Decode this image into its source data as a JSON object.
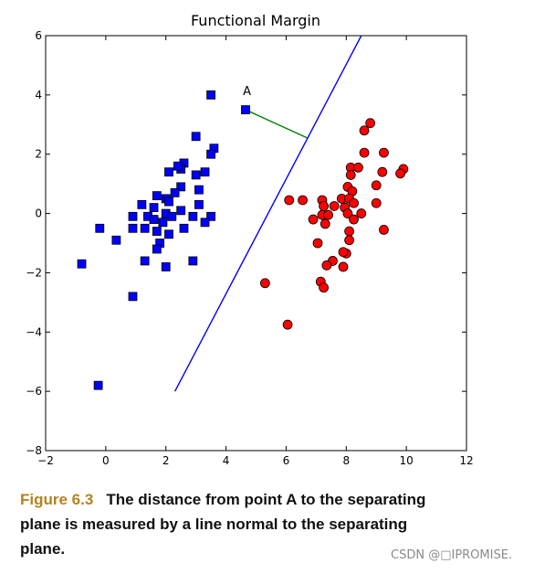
{
  "chart_data": {
    "type": "scatter",
    "title": "Functional Margin",
    "xlabel": "",
    "ylabel": "",
    "xlim": [
      -2,
      12
    ],
    "ylim": [
      -8,
      6
    ],
    "xticks": [
      "−2",
      "0",
      "2",
      "4",
      "6",
      "8",
      "10",
      "12"
    ],
    "yticks": [
      "−8",
      "−6",
      "−4",
      "−2",
      "0",
      "2",
      "4",
      "6"
    ],
    "grid": false,
    "legend": "none",
    "series": [
      {
        "marker": "square",
        "color": "#0000ff",
        "points": [
          [
            3.5,
            4.0
          ],
          [
            4.65,
            3.5
          ],
          [
            3.0,
            2.6
          ],
          [
            3.6,
            2.2
          ],
          [
            3.5,
            2.0
          ],
          [
            2.6,
            1.7
          ],
          [
            2.1,
            1.4
          ],
          [
            2.5,
            1.5
          ],
          [
            2.4,
            1.6
          ],
          [
            3.3,
            1.4
          ],
          [
            3.0,
            1.3
          ],
          [
            3.1,
            0.8
          ],
          [
            2.5,
            0.9
          ],
          [
            2.3,
            0.7
          ],
          [
            1.7,
            0.6
          ],
          [
            2.0,
            0.5
          ],
          [
            2.1,
            0.4
          ],
          [
            1.2,
            0.3
          ],
          [
            1.6,
            0.2
          ],
          [
            3.1,
            0.3
          ],
          [
            2.5,
            0.1
          ],
          [
            2.0,
            0.0
          ],
          [
            0.9,
            -0.1
          ],
          [
            1.4,
            -0.1
          ],
          [
            1.6,
            -0.2
          ],
          [
            1.9,
            -0.3
          ],
          [
            2.2,
            -0.1
          ],
          [
            2.9,
            -0.1
          ],
          [
            3.5,
            -0.1
          ],
          [
            3.3,
            -0.3
          ],
          [
            -0.2,
            -0.5
          ],
          [
            0.9,
            -0.5
          ],
          [
            1.3,
            -0.5
          ],
          [
            1.7,
            -0.6
          ],
          [
            2.1,
            -0.7
          ],
          [
            2.6,
            -0.5
          ],
          [
            0.35,
            -0.9
          ],
          [
            1.8,
            -1.0
          ],
          [
            1.7,
            -1.2
          ],
          [
            -0.8,
            -1.7
          ],
          [
            1.3,
            -1.6
          ],
          [
            2.0,
            -1.8
          ],
          [
            2.9,
            -1.6
          ],
          [
            0.9,
            -2.8
          ],
          [
            -0.25,
            -5.8
          ]
        ]
      },
      {
        "marker": "circle",
        "color": "#ff0000",
        "points": [
          [
            8.8,
            3.05
          ],
          [
            8.6,
            2.8
          ],
          [
            8.6,
            2.05
          ],
          [
            9.25,
            2.05
          ],
          [
            9.9,
            1.5
          ],
          [
            9.8,
            1.35
          ],
          [
            8.15,
            1.55
          ],
          [
            8.4,
            1.55
          ],
          [
            9.2,
            1.4
          ],
          [
            8.15,
            1.3
          ],
          [
            9.0,
            0.95
          ],
          [
            8.05,
            0.9
          ],
          [
            8.2,
            0.75
          ],
          [
            7.85,
            0.5
          ],
          [
            8.1,
            0.5
          ],
          [
            7.2,
            0.45
          ],
          [
            6.1,
            0.45
          ],
          [
            6.55,
            0.45
          ],
          [
            8.25,
            0.35
          ],
          [
            9.0,
            0.35
          ],
          [
            7.95,
            0.2
          ],
          [
            7.25,
            0.25
          ],
          [
            7.6,
            0.25
          ],
          [
            8.05,
            0.0
          ],
          [
            7.2,
            -0.05
          ],
          [
            7.4,
            -0.05
          ],
          [
            8.5,
            0.0
          ],
          [
            6.9,
            -0.2
          ],
          [
            7.3,
            -0.35
          ],
          [
            8.25,
            -0.2
          ],
          [
            8.1,
            -0.6
          ],
          [
            9.25,
            -0.55
          ],
          [
            8.1,
            -0.9
          ],
          [
            7.05,
            -1.0
          ],
          [
            8.0,
            -1.35
          ],
          [
            7.9,
            -1.3
          ],
          [
            7.55,
            -1.6
          ],
          [
            7.35,
            -1.75
          ],
          [
            7.9,
            -1.8
          ],
          [
            7.15,
            -2.3
          ],
          [
            7.25,
            -2.5
          ],
          [
            5.3,
            -2.35
          ],
          [
            6.05,
            -3.75
          ]
        ]
      }
    ],
    "lines": [
      {
        "color": "#0000ff",
        "x": [
          2.3,
          8.5
        ],
        "y": [
          -6.0,
          6.0
        ]
      },
      {
        "color": "#008000",
        "x": [
          4.65,
          6.7
        ],
        "y": [
          3.5,
          2.55
        ]
      }
    ],
    "annotations": [
      {
        "text": "A",
        "x": 4.7,
        "y": 4.0
      }
    ]
  },
  "caption": {
    "figure_label": "Figure 6.3",
    "text": "The distance from point A to the separating plane is measured by a line normal to the separating plane."
  },
  "watermark": "CSDN @□IPROMISE."
}
